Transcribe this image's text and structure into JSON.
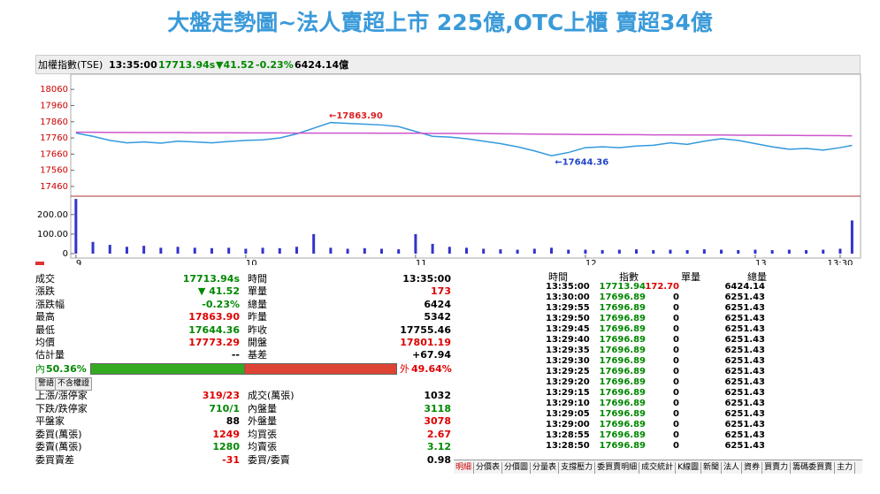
{
  "title": "大盤走勢圖~法人賣超上市 225億,OTC上櫃 賣超34億",
  "header": {
    "name": "加權指數(TSE)",
    "time": "13:35:00",
    "price": "17713.94s",
    "change": "▼41.52",
    "pct": "-0.23%",
    "amount": "6424.14億"
  },
  "chart_data": [
    {
      "type": "line",
      "xlim": [
        8.98,
        13.62
      ],
      "ylim": [
        17400,
        18110
      ],
      "yticks": [
        17460,
        17560,
        17660,
        17760,
        17860,
        17960,
        18060
      ],
      "x": [
        9.0,
        9.1,
        9.2,
        9.3,
        9.4,
        9.5,
        9.6,
        9.7,
        9.8,
        9.9,
        10.0,
        10.1,
        10.2,
        10.3,
        10.4,
        10.5,
        10.6,
        10.7,
        10.8,
        10.9,
        11.0,
        11.1,
        11.2,
        11.3,
        11.4,
        11.5,
        11.6,
        11.7,
        11.8,
        11.9,
        12.0,
        12.1,
        12.2,
        12.3,
        12.4,
        12.5,
        12.6,
        12.7,
        12.8,
        12.9,
        13.0,
        13.1,
        13.2,
        13.3,
        13.4,
        13.5,
        13.57
      ],
      "series": [
        {
          "color": "#3399dd",
          "values": [
            17790,
            17770,
            17745,
            17730,
            17735,
            17728,
            17740,
            17735,
            17730,
            17738,
            17745,
            17748,
            17760,
            17785,
            17820,
            17855,
            17850,
            17845,
            17840,
            17830,
            17800,
            17770,
            17765,
            17755,
            17740,
            17725,
            17705,
            17680,
            17650,
            17670,
            17700,
            17705,
            17700,
            17710,
            17715,
            17730,
            17720,
            17740,
            17755,
            17745,
            17725,
            17705,
            17690,
            17695,
            17685,
            17700,
            17713.94
          ]
        },
        {
          "color": "#cc55cc",
          "values": [
            17795,
            17795,
            17794,
            17794,
            17793,
            17793,
            17793,
            17792,
            17792,
            17792,
            17791,
            17791,
            17791,
            17790,
            17790,
            17790,
            17790,
            17790,
            17789,
            17789,
            17789,
            17788,
            17788,
            17787,
            17787,
            17786,
            17785,
            17784,
            17783,
            17782,
            17781,
            17781,
            17780,
            17780,
            17779,
            17779,
            17778,
            17778,
            17778,
            17777,
            17777,
            17776,
            17776,
            17775,
            17775,
            17774,
            17773
          ]
        }
      ],
      "annotations": [
        {
          "text": "←17863.90",
          "x": 10.49,
          "y": 17863.9,
          "color": "#dd2222"
        },
        {
          "text": "←17644.36",
          "x": 11.82,
          "y": 17644.36,
          "color": "#2244cc"
        }
      ]
    },
    {
      "type": "bar",
      "xlim": [
        8.98,
        13.62
      ],
      "ylim": [
        0,
        285
      ],
      "yticks": [
        {
          "value": 200,
          "label": "200.00"
        },
        {
          "value": 100,
          "label": "100.00"
        },
        0
      ],
      "xticks": [
        9,
        10,
        11,
        12,
        13,
        {
          "value": 13.5,
          "label": "13:30"
        }
      ],
      "color": "#3333cc",
      "x": [
        9.0,
        9.1,
        9.2,
        9.3,
        9.4,
        9.5,
        9.6,
        9.7,
        9.8,
        9.9,
        10.0,
        10.1,
        10.2,
        10.3,
        10.4,
        10.5,
        10.6,
        10.7,
        10.8,
        10.9,
        11.0,
        11.1,
        11.2,
        11.3,
        11.4,
        11.5,
        11.6,
        11.7,
        11.8,
        11.9,
        12.0,
        12.1,
        12.2,
        12.3,
        12.4,
        12.5,
        12.6,
        12.7,
        12.8,
        12.9,
        13.0,
        13.1,
        13.2,
        13.3,
        13.4,
        13.5,
        13.57
      ],
      "values": [
        280,
        60,
        45,
        35,
        40,
        30,
        35,
        30,
        28,
        30,
        25,
        30,
        28,
        35,
        100,
        30,
        25,
        28,
        25,
        22,
        100,
        50,
        35,
        30,
        25,
        22,
        20,
        25,
        30,
        20,
        20,
        18,
        20,
        22,
        18,
        20,
        18,
        22,
        20,
        18,
        20,
        18,
        20,
        18,
        20,
        25,
        170
      ]
    }
  ],
  "quote": {
    "rows": [
      [
        {
          "label": "成交",
          "value": "17713.94s",
          "color": "#008800"
        },
        {
          "label": "時間",
          "value": "13:35:00"
        }
      ],
      [
        {
          "label": "漲跌",
          "value": "▼ 41.52",
          "color": "#008800"
        },
        {
          "label": "單量",
          "value": "173",
          "color": "#dd0000"
        }
      ],
      [
        {
          "label": "漲跌幅",
          "value": "-0.23%",
          "color": "#008800"
        },
        {
          "label": "總量",
          "value": "6424"
        }
      ],
      [
        {
          "label": "最高",
          "value": "17863.90",
          "color": "#dd0000"
        },
        {
          "label": "昨量",
          "value": "5342"
        }
      ],
      [
        {
          "label": "最低",
          "value": "17644.36",
          "color": "#008800"
        },
        {
          "label": "昨收",
          "value": "17755.46"
        }
      ],
      [
        {
          "label": "均價",
          "value": "17773.29",
          "color": "#dd0000"
        },
        {
          "label": "開盤",
          "value": "17801.19",
          "color": "#dd0000"
        }
      ],
      [
        {
          "label": "估計量",
          "value": "--"
        },
        {
          "label": "基差",
          "value": "+67.94"
        }
      ]
    ],
    "inner_label": "內",
    "inner": "50.36%",
    "outer_label": "外",
    "outer": "49.64%",
    "buttons": [
      "警語",
      "不含權證"
    ],
    "rows2": [
      [
        {
          "label": "上漲/漲停家",
          "value": "319/23",
          "color": "#dd0000"
        },
        {
          "label": "成交(萬張)",
          "value": "1032"
        }
      ],
      [
        {
          "label": "下跌/跌停家",
          "value": "710/1",
          "color": "#008800"
        },
        {
          "label": "內盤量",
          "value": "3118",
          "color": "#008800"
        }
      ],
      [
        {
          "label": "平盤家",
          "value": "88"
        },
        {
          "label": "外盤量",
          "value": "3078",
          "color": "#dd0000"
        }
      ],
      [
        {
          "label": "委買(萬張)",
          "value": "1249",
          "color": "#dd0000"
        },
        {
          "label": "均買張",
          "value": "2.67",
          "color": "#dd0000"
        }
      ],
      [
        {
          "label": "委賣(萬張)",
          "value": "1280",
          "color": "#008800"
        },
        {
          "label": "均賣張",
          "value": "3.12",
          "color": "#008800"
        }
      ],
      [
        {
          "label": "委買賣差",
          "value": "-31",
          "color": "#dd0000"
        },
        {
          "label": "委買/委賣",
          "value": "0.98"
        }
      ]
    ]
  },
  "ticks_table": {
    "header": [
      "時間",
      "指數",
      "單量",
      "總量"
    ],
    "rows": [
      [
        "13:35:00",
        "17713.94",
        "172.70",
        "6424.14"
      ],
      [
        "13:30:00",
        "17696.89",
        "0",
        "6251.43"
      ],
      [
        "13:29:55",
        "17696.89",
        "0",
        "6251.43"
      ],
      [
        "13:29:50",
        "17696.89",
        "0",
        "6251.43"
      ],
      [
        "13:29:45",
        "17696.89",
        "0",
        "6251.43"
      ],
      [
        "13:29:40",
        "17696.89",
        "0",
        "6251.43"
      ],
      [
        "13:29:35",
        "17696.89",
        "0",
        "6251.43"
      ],
      [
        "13:29:30",
        "17696.89",
        "0",
        "6251.43"
      ],
      [
        "13:29:25",
        "17696.89",
        "0",
        "6251.43"
      ],
      [
        "13:29:20",
        "17696.89",
        "0",
        "6251.43"
      ],
      [
        "13:29:15",
        "17696.89",
        "0",
        "6251.43"
      ],
      [
        "13:29:10",
        "17696.89",
        "0",
        "6251.43"
      ],
      [
        "13:29:05",
        "17696.89",
        "0",
        "6251.43"
      ],
      [
        "13:29:00",
        "17696.89",
        "0",
        "6251.43"
      ],
      [
        "13:28:55",
        "17696.89",
        "0",
        "6251.43"
      ],
      [
        "13:28:50",
        "17696.89",
        "0",
        "6251.43"
      ]
    ]
  },
  "tabs": [
    "明細",
    "分價表",
    "分價圖",
    "分量表",
    "支撐壓力",
    "委買賣明細",
    "成交統計",
    "K線圖",
    "新聞",
    "法人",
    "資券",
    "買賣力",
    "籌碼委買賣",
    "主力"
  ]
}
